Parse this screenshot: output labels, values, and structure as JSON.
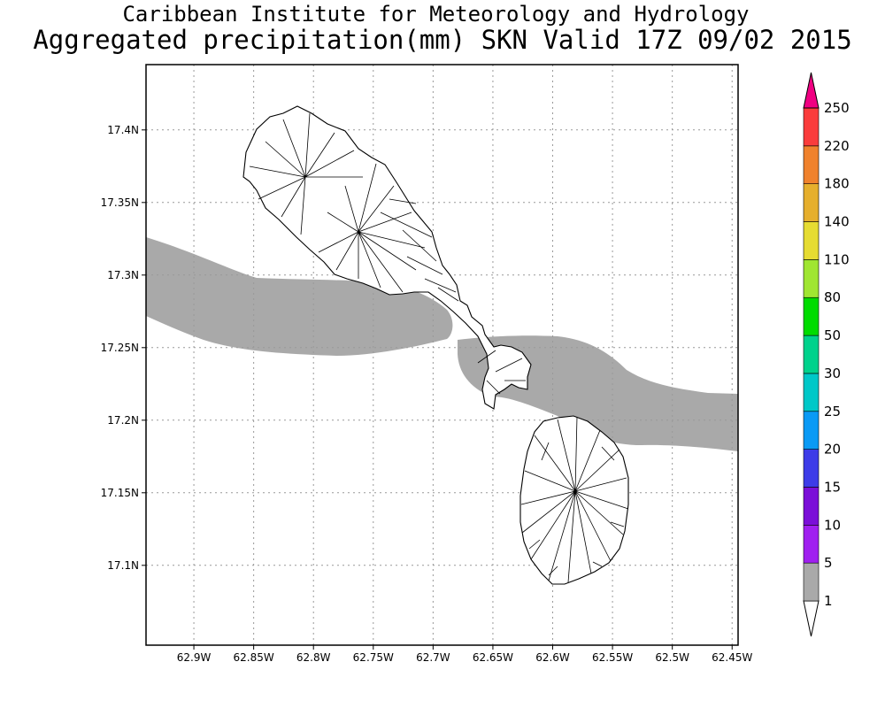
{
  "header": {
    "line1": "Caribbean Institute for Meteorology and Hydrology",
    "line2": "Aggregated precipitation(mm) SKN Valid 17Z 09/02 2015"
  },
  "map": {
    "lon_range": [
      -62.94,
      -62.445
    ],
    "lat_range": [
      17.045,
      17.445
    ],
    "precip_band_color": "#a9a9a9",
    "precip_band_category": "1-5 mm",
    "islands": [
      "St. Kitts",
      "Nevis"
    ]
  },
  "axes": {
    "x_ticks": [
      {
        "value": -62.9,
        "label": "62.9W"
      },
      {
        "value": -62.85,
        "label": "62.85W"
      },
      {
        "value": -62.8,
        "label": "62.8W"
      },
      {
        "value": -62.75,
        "label": "62.75W"
      },
      {
        "value": -62.7,
        "label": "62.7W"
      },
      {
        "value": -62.65,
        "label": "62.65W"
      },
      {
        "value": -62.6,
        "label": "62.6W"
      },
      {
        "value": -62.55,
        "label": "62.55W"
      },
      {
        "value": -62.5,
        "label": "62.5W"
      },
      {
        "value": -62.45,
        "label": "62.45W"
      }
    ],
    "y_ticks": [
      {
        "value": 17.4,
        "label": "17.4N"
      },
      {
        "value": 17.35,
        "label": "17.35N"
      },
      {
        "value": 17.3,
        "label": "17.3N"
      },
      {
        "value": 17.25,
        "label": "17.25N"
      },
      {
        "value": 17.2,
        "label": "17.2N"
      },
      {
        "value": 17.15,
        "label": "17.15N"
      },
      {
        "value": 17.1,
        "label": "17.1N"
      }
    ],
    "grid": true
  },
  "colorbar": {
    "bins": [
      {
        "label": "1",
        "color": "#a9a9a9"
      },
      {
        "label": "5",
        "color": "#a020f0"
      },
      {
        "label": "10",
        "color": "#7b0fd8"
      },
      {
        "label": "15",
        "color": "#3d3ce8"
      },
      {
        "label": "20",
        "color": "#0a9af5"
      },
      {
        "label": "25",
        "color": "#00c8c8"
      },
      {
        "label": "30",
        "color": "#00d28c"
      },
      {
        "label": "50",
        "color": "#00dc00"
      },
      {
        "label": "80",
        "color": "#a0e632"
      },
      {
        "label": "110",
        "color": "#e6dc32"
      },
      {
        "label": "140",
        "color": "#e6af2d"
      },
      {
        "label": "180",
        "color": "#f0822d"
      },
      {
        "label": "220",
        "color": "#fa3c3c"
      },
      {
        "label": "250",
        "color": "#f00082"
      }
    ]
  }
}
